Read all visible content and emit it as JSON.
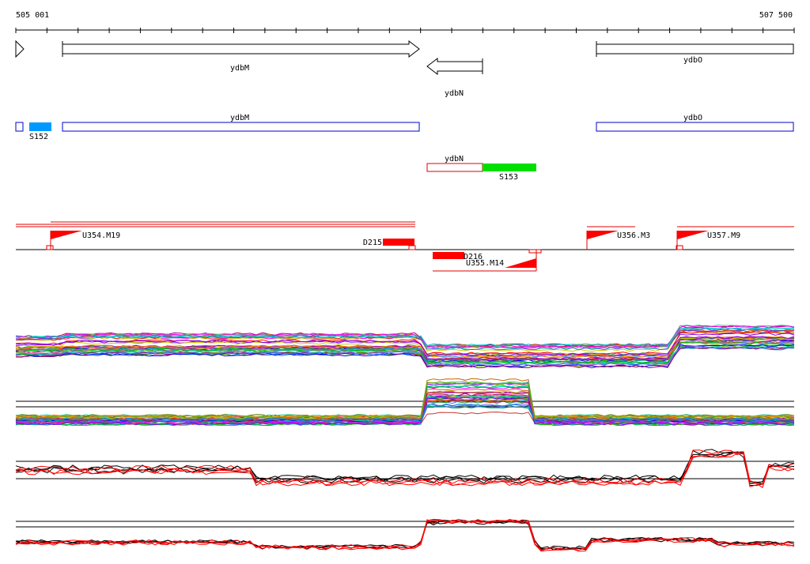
{
  "axis": {
    "start_label": "505 001",
    "end_label": "507 500"
  },
  "genes": [
    {
      "label": "ydbM"
    },
    {
      "label": "ydbN"
    },
    {
      "label": "ydbO"
    }
  ],
  "features": [
    {
      "label": "ydbM"
    },
    {
      "label": "ydbO"
    },
    {
      "label": "ydbN"
    },
    {
      "label": "S152",
      "color": "#0099ff"
    },
    {
      "label": "S153",
      "color": "#00e000"
    }
  ],
  "segments": [
    {
      "label": "U354.M19"
    },
    {
      "label": "D215"
    },
    {
      "label": "D216"
    },
    {
      "label": "U355.M14"
    },
    {
      "label": "U356.M3"
    },
    {
      "label": "U357.M9"
    }
  ],
  "colors": {
    "gene_outline": "#000000",
    "feature_outline": "#0000cc",
    "antisense_outline": "#e00000",
    "segment_red": "#ff0000",
    "baseline": "#000000"
  }
}
